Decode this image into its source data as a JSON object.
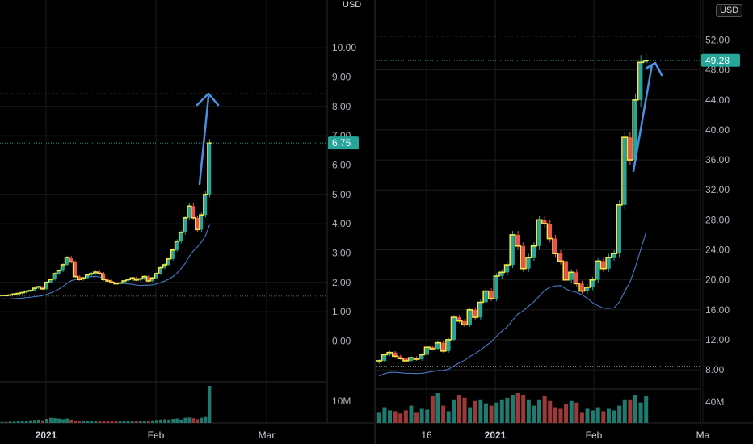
{
  "chart_data": [
    {
      "type": "candlestick",
      "currency": "USD",
      "price_label": "6.75",
      "yticks": [
        "10.00",
        "9.00",
        "8.00",
        "7.00",
        "6.00",
        "5.00",
        "4.00",
        "3.00",
        "2.00",
        "1.00",
        "0.00"
      ],
      "ylim": [
        -0.4,
        10.8
      ],
      "volume_label": "10M",
      "xticks": [
        "2021",
        "Feb",
        "Mar"
      ],
      "colors": {
        "up": "#26a69a",
        "down": "#ef5350",
        "line": "#f5e642",
        "ma": "#4a78c9",
        "arrow": "#4a90e2",
        "tag": "#26a69a"
      },
      "close": [
        1.56,
        1.55,
        1.57,
        1.6,
        1.62,
        1.65,
        1.7,
        1.72,
        1.8,
        1.85,
        1.78,
        2.0,
        2.1,
        2.3,
        2.4,
        2.6,
        2.85,
        2.7,
        2.2,
        2.1,
        2.15,
        2.25,
        2.3,
        2.35,
        2.3,
        2.1,
        2.05,
        2.0,
        1.95,
        1.98,
        2.05,
        2.1,
        2.15,
        2.08,
        2.12,
        2.2,
        2.05,
        2.15,
        2.3,
        2.5,
        2.6,
        2.8,
        3.1,
        3.4,
        3.7,
        4.2,
        4.6,
        4.2,
        3.8,
        4.3,
        5.0,
        6.75
      ],
      "volume": [
        0.3,
        0.3,
        0.4,
        0.4,
        0.5,
        0.6,
        0.7,
        0.8,
        0.9,
        1.0,
        0.8,
        1.2,
        1.5,
        1.4,
        1.3,
        1.1,
        1.3,
        1.0,
        0.7,
        0.7,
        0.6,
        0.6,
        0.5,
        0.5,
        0.5,
        0.5,
        0.5,
        0.5,
        0.5,
        0.5,
        0.6,
        0.5,
        0.6,
        0.6,
        0.7,
        0.7,
        0.6,
        0.8,
        0.9,
        1.0,
        1.1,
        1.0,
        1.2,
        1.3,
        1.0,
        1.5,
        1.6,
        1.4,
        1.1,
        1.5,
        2.0,
        11.0
      ],
      "annotation": "arrow-up"
    },
    {
      "type": "candlestick",
      "currency": "USD",
      "price_label": "49.28",
      "yticks": [
        "52.00",
        "48.00",
        "44.00",
        "40.00",
        "36.00",
        "32.00",
        "28.00",
        "24.00",
        "20.00",
        "16.00",
        "12.00",
        "8.00"
      ],
      "ylim": [
        6.5,
        55.5
      ],
      "volume_label": "40M",
      "xticks": [
        "16",
        "2021",
        "Feb",
        "Ma"
      ],
      "colors": {
        "up": "#26a69a",
        "down": "#ef5350",
        "line": "#f5e642",
        "ma": "#4a78c9",
        "arrow": "#4a90e2",
        "tag": "#26a69a"
      },
      "close": [
        9.2,
        10.0,
        10.3,
        9.8,
        9.5,
        9.2,
        9.6,
        9.4,
        10.0,
        11.0,
        10.8,
        11.6,
        10.5,
        12.0,
        15.0,
        14.5,
        14.0,
        16.0,
        15.0,
        17.0,
        18.5,
        17.5,
        20.5,
        21.0,
        22.0,
        26.0,
        24.5,
        21.5,
        23.0,
        24.5,
        28.0,
        27.5,
        25.5,
        23.5,
        22.5,
        20.0,
        21.0,
        19.5,
        18.5,
        19.0,
        20.0,
        22.5,
        21.5,
        23.0,
        23.5,
        30.0,
        39.0,
        36.0,
        44.0,
        49.0,
        49.28
      ],
      "volume": [
        14,
        20,
        16,
        15,
        12,
        16,
        22,
        14,
        18,
        17,
        35,
        38,
        22,
        15,
        30,
        36,
        32,
        20,
        28,
        30,
        25,
        22,
        26,
        30,
        32,
        36,
        38,
        36,
        30,
        22,
        30,
        34,
        28,
        20,
        18,
        24,
        28,
        26,
        14,
        18,
        16,
        20,
        15,
        18,
        16,
        22,
        30,
        30,
        36,
        26,
        34
      ],
      "annotation": "arrow-up-right"
    }
  ]
}
